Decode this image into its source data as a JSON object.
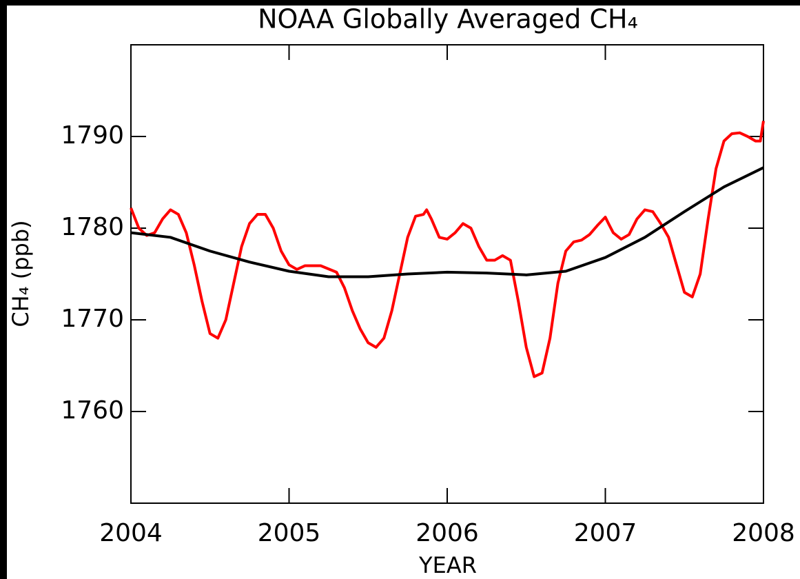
{
  "chart_data": {
    "type": "line",
    "title": "NOAA Globally Averaged CH₄",
    "x_label": "YEAR",
    "y_label": "CH₄ (ppb)",
    "xlim": [
      2004,
      2008
    ],
    "xticks": [
      2004,
      2005,
      2006,
      2007,
      2008
    ],
    "ylim": [
      1750,
      1800
    ],
    "yticks": [
      1760,
      1770,
      1780,
      1790
    ],
    "series": [
      {
        "color": "#ff0000",
        "x": [
          2004.0,
          2004.05,
          2004.1,
          2004.15,
          2004.2,
          2004.25,
          2004.3,
          2004.35,
          2004.4,
          2004.45,
          2004.5,
          2004.55,
          2004.6,
          2004.65,
          2004.7,
          2004.75,
          2004.8,
          2004.85,
          2004.9,
          2004.95,
          2005.0,
          2005.05,
          2005.1,
          2005.2,
          2005.3,
          2005.35,
          2005.4,
          2005.45,
          2005.5,
          2005.55,
          2005.6,
          2005.65,
          2005.7,
          2005.75,
          2005.8,
          2005.85,
          2005.87,
          2005.9,
          2005.95,
          2006.0,
          2006.05,
          2006.1,
          2006.15,
          2006.2,
          2006.25,
          2006.3,
          2006.35,
          2006.4,
          2006.45,
          2006.5,
          2006.55,
          2006.6,
          2006.65,
          2006.7,
          2006.75,
          2006.8,
          2006.85,
          2006.9,
          2006.95,
          2007.0,
          2007.02,
          2007.05,
          2007.1,
          2007.15,
          2007.2,
          2007.25,
          2007.3,
          2007.35,
          2007.4,
          2007.45,
          2007.5,
          2007.55,
          2007.6,
          2007.65,
          2007.7,
          2007.75,
          2007.8,
          2007.85,
          2007.9,
          2007.93,
          2007.95,
          2007.98,
          2008.0
        ],
        "values": [
          1782.2,
          1780,
          1779.2,
          1779.5,
          1781,
          1782,
          1781.5,
          1779.5,
          1776,
          1772,
          1768.5,
          1768,
          1770,
          1774,
          1778,
          1780.5,
          1781.5,
          1781.5,
          1780,
          1777.5,
          1776,
          1775.5,
          1775.9,
          1775.9,
          1775.2,
          1773.5,
          1771,
          1769,
          1767.5,
          1767,
          1768,
          1771,
          1775,
          1779,
          1781.3,
          1781.5,
          1782,
          1781,
          1779,
          1778.8,
          1779.5,
          1780.5,
          1780,
          1778,
          1776.5,
          1776.5,
          1777,
          1776.5,
          1772,
          1767,
          1763.8,
          1764.2,
          1768,
          1774,
          1777.5,
          1778.5,
          1778.7,
          1779.3,
          1780.3,
          1781.2,
          1780.5,
          1779.5,
          1778.8,
          1779.3,
          1781,
          1782,
          1781.8,
          1780.5,
          1779,
          1776,
          1773,
          1772.5,
          1775,
          1781,
          1786.5,
          1789.5,
          1790.3,
          1790.4,
          1790,
          1789.7,
          1789.5,
          1789.5,
          1791.7
        ]
      },
      {
        "color": "#000000",
        "x": [
          2004.0,
          2004.25,
          2004.5,
          2004.75,
          2005.0,
          2005.25,
          2005.5,
          2005.75,
          2006.0,
          2006.25,
          2006.5,
          2006.75,
          2007.0,
          2007.25,
          2007.5,
          2007.75,
          2008.0
        ],
        "values": [
          1779.5,
          1779,
          1777.5,
          1776.3,
          1775.3,
          1774.7,
          1774.7,
          1775,
          1775.2,
          1775.1,
          1774.9,
          1775.3,
          1776.8,
          1779,
          1781.8,
          1784.5,
          1786.6
        ]
      }
    ]
  }
}
